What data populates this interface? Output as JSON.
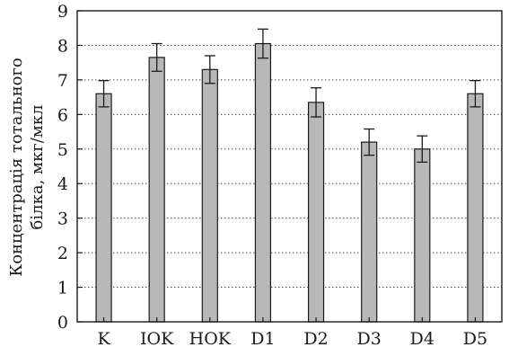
{
  "chart_data": {
    "type": "bar",
    "title": "",
    "xlabel": "",
    "ylabel_line1": "Концентрація тотального",
    "ylabel_line2": "білка, мкг/мкл",
    "categories": [
      "K",
      "IOK",
      "HOK",
      "D1",
      "D2",
      "D3",
      "D4",
      "D5"
    ],
    "values": [
      6.6,
      7.65,
      7.3,
      8.05,
      6.35,
      5.2,
      5.0,
      6.6
    ],
    "errors": [
      0.38,
      0.4,
      0.4,
      0.42,
      0.42,
      0.38,
      0.38,
      0.38
    ],
    "ylim": [
      0,
      9
    ],
    "yticks": [
      "0",
      "1",
      "2",
      "3",
      "4",
      "5",
      "6",
      "7",
      "8",
      "9"
    ],
    "grid": true,
    "bar_color": "#b8b8b8",
    "edge_color": "#1a1a1a"
  }
}
